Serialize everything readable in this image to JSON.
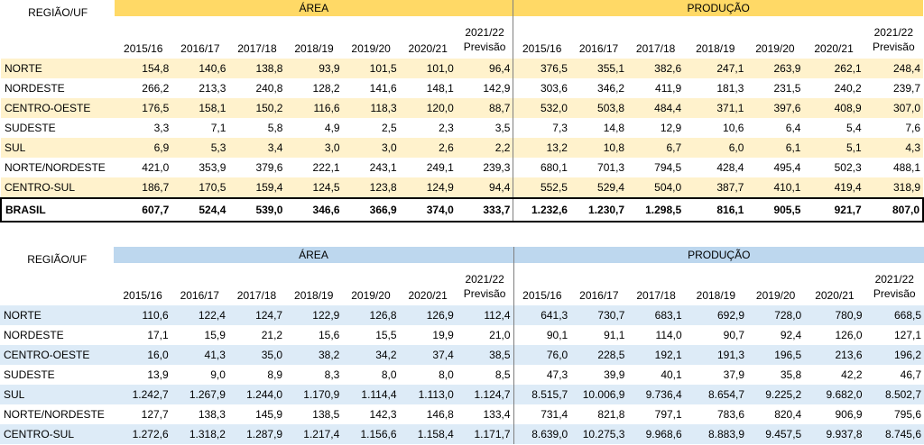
{
  "header": {
    "label": "REGIÃO/UF",
    "group_area": "ÁREA",
    "group_production": "PRODUÇÃO",
    "years": [
      "2015/16",
      "2016/17",
      "2017/18",
      "2018/19",
      "2019/20",
      "2020/21",
      "2021/22"
    ],
    "forecast_note": "Previsão"
  },
  "colors": {
    "table1_header": "#ffd966",
    "table1_band": "#fff2cc",
    "table2_header": "#bdd7ee",
    "table2_band": "#ddebf7"
  },
  "table1": {
    "rows": [
      {
        "label": "NORTE",
        "area": [
          "154,8",
          "140,6",
          "138,8",
          "93,9",
          "101,5",
          "101,0",
          "96,4"
        ],
        "producao": [
          "376,5",
          "355,1",
          "382,6",
          "247,1",
          "263,9",
          "262,1",
          "248,4"
        ]
      },
      {
        "label": "NORDESTE",
        "area": [
          "266,2",
          "213,3",
          "240,8",
          "128,2",
          "141,6",
          "148,1",
          "142,9"
        ],
        "producao": [
          "303,6",
          "346,2",
          "411,9",
          "181,3",
          "231,5",
          "240,2",
          "239,7"
        ]
      },
      {
        "label": "CENTRO-OESTE",
        "area": [
          "176,5",
          "158,1",
          "150,2",
          "116,6",
          "118,3",
          "120,0",
          "88,7"
        ],
        "producao": [
          "532,0",
          "503,8",
          "484,4",
          "371,1",
          "397,6",
          "408,9",
          "307,0"
        ]
      },
      {
        "label": "SUDESTE",
        "area": [
          "3,3",
          "7,1",
          "5,8",
          "4,9",
          "2,5",
          "2,3",
          "3,5"
        ],
        "producao": [
          "7,3",
          "14,8",
          "12,9",
          "10,6",
          "6,4",
          "5,4",
          "7,6"
        ]
      },
      {
        "label": "SUL",
        "area": [
          "6,9",
          "5,3",
          "3,4",
          "3,0",
          "3,0",
          "2,6",
          "2,2"
        ],
        "producao": [
          "13,2",
          "10,8",
          "6,7",
          "6,0",
          "6,1",
          "5,1",
          "4,3"
        ]
      },
      {
        "label": "NORTE/NORDESTE",
        "area": [
          "421,0",
          "353,9",
          "379,6",
          "222,1",
          "243,1",
          "249,1",
          "239,3"
        ],
        "producao": [
          "680,1",
          "701,3",
          "794,5",
          "428,4",
          "495,4",
          "502,3",
          "488,1"
        ]
      },
      {
        "label": "CENTRO-SUL",
        "area": [
          "186,7",
          "170,5",
          "159,4",
          "124,5",
          "123,8",
          "124,9",
          "94,4"
        ],
        "producao": [
          "552,5",
          "529,4",
          "504,0",
          "387,7",
          "410,1",
          "419,4",
          "318,9"
        ]
      }
    ],
    "total": {
      "label": "BRASIL",
      "area": [
        "607,7",
        "524,4",
        "539,0",
        "346,6",
        "366,9",
        "374,0",
        "333,7"
      ],
      "producao": [
        "1.232,6",
        "1.230,7",
        "1.298,5",
        "816,1",
        "905,5",
        "921,7",
        "807,0"
      ]
    }
  },
  "table2": {
    "rows": [
      {
        "label": "NORTE",
        "area": [
          "110,6",
          "122,4",
          "124,7",
          "122,9",
          "126,8",
          "126,9",
          "112,4"
        ],
        "producao": [
          "641,3",
          "730,7",
          "683,1",
          "692,9",
          "728,0",
          "780,9",
          "668,5"
        ]
      },
      {
        "label": "NORDESTE",
        "area": [
          "17,1",
          "15,9",
          "21,2",
          "15,6",
          "15,5",
          "19,9",
          "21,0"
        ],
        "producao": [
          "90,1",
          "91,1",
          "114,0",
          "90,7",
          "92,4",
          "126,0",
          "127,1"
        ]
      },
      {
        "label": "CENTRO-OESTE",
        "area": [
          "16,0",
          "41,3",
          "35,0",
          "38,2",
          "34,2",
          "37,4",
          "38,5"
        ],
        "producao": [
          "76,0",
          "228,5",
          "192,1",
          "191,3",
          "196,5",
          "213,6",
          "196,2"
        ]
      },
      {
        "label": "SUDESTE",
        "area": [
          "13,9",
          "9,0",
          "8,9",
          "8,3",
          "8,0",
          "8,0",
          "8,5"
        ],
        "producao": [
          "47,3",
          "39,9",
          "40,1",
          "37,9",
          "35,8",
          "42,2",
          "46,7"
        ]
      },
      {
        "label": "SUL",
        "area": [
          "1.242,7",
          "1.267,9",
          "1.244,0",
          "1.170,9",
          "1.114,4",
          "1.113,0",
          "1.124,7"
        ],
        "producao": [
          "8.515,7",
          "10.006,9",
          "9.736,4",
          "8.654,7",
          "9.225,2",
          "9.682,0",
          "8.502,7"
        ]
      },
      {
        "label": "NORTE/NORDESTE",
        "area": [
          "127,7",
          "138,3",
          "145,9",
          "138,5",
          "142,3",
          "146,8",
          "133,4"
        ],
        "producao": [
          "731,4",
          "821,8",
          "797,1",
          "783,6",
          "820,4",
          "906,9",
          "795,6"
        ]
      },
      {
        "label": "CENTRO-SUL",
        "area": [
          "1.272,6",
          "1.318,2",
          "1.287,9",
          "1.217,4",
          "1.156,6",
          "1.158,4",
          "1.171,7"
        ],
        "producao": [
          "8.639,0",
          "10.275,3",
          "9.968,6",
          "8.883,9",
          "9.457,5",
          "9.937,8",
          "8.745,6"
        ]
      }
    ]
  }
}
